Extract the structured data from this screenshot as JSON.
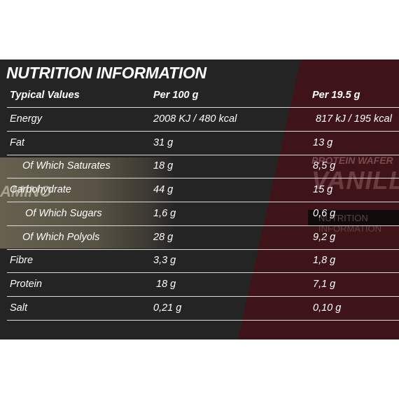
{
  "title": "NUTRITION INFORMATION",
  "background": {
    "product_text": "AMINO",
    "flavor_small": "PROTEIN WAFER",
    "flavor": "VANILLA",
    "label": "NUTRITION INFORMATION"
  },
  "header": {
    "col1": "Typical Values",
    "col2": "Per 100 g",
    "col3": "Per 19.5 g"
  },
  "rows": [
    {
      "name": "Energy",
      "per100": "2008 KJ / 480 kcal",
      "perServing": "817 kJ / 195 kcal"
    },
    {
      "name": "Fat",
      "per100": "31 g",
      "perServing": "13 g"
    },
    {
      "name": "Of Which Saturates",
      "per100": "18 g",
      "perServing": "8,5 g"
    },
    {
      "name": "Carbohydrate",
      "per100": "44 g",
      "perServing": "15 g"
    },
    {
      "name": "Of Which Sugars",
      "per100": "1,6 g",
      "perServing": "0,6 g"
    },
    {
      "name": "Of Which Polyols",
      "per100": "28 g",
      "perServing": "9,2 g"
    },
    {
      "name": "Fibre",
      "per100": "3,3 g",
      "perServing": "1,8 g"
    },
    {
      "name": "Protein",
      "per100": "18 g",
      "perServing": "7,1 g"
    },
    {
      "name": "Salt",
      "per100": "0,21 g",
      "perServing": "0,10 g"
    }
  ],
  "colors": {
    "panel": "#242424",
    "accent": "#3f1418",
    "text": "#ffffff",
    "divider": "#d8d8d8"
  }
}
